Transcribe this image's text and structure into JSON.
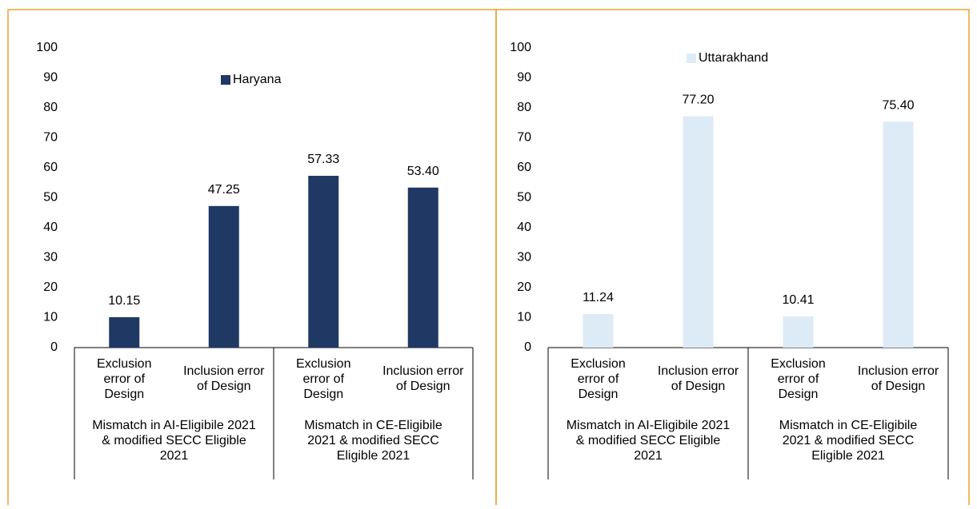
{
  "chart_data": [
    {
      "type": "bar",
      "categories": [
        "Exclusion error of Design",
        "Inclusion error of Design",
        "Exclusion error of Design",
        "Inclusion error of Design"
      ],
      "groups": [
        "Mismatch in AI-Eligibile 2021 & modified SECC Eligible 2021",
        "Mismatch in CE-Eligibile 2021 & modified SECC Eligible 2021"
      ],
      "series": [
        {
          "name": "Haryana",
          "color": "#203864",
          "values": [
            10.15,
            47.25,
            57.33,
            53.4
          ],
          "value_labels": [
            "10.15",
            "47.25",
            "57.33",
            "53.40"
          ]
        }
      ],
      "ylim": [
        0,
        100
      ],
      "yticks": [
        0,
        10,
        20,
        30,
        40,
        50,
        60,
        70,
        80,
        90,
        100
      ],
      "legend": "top"
    },
    {
      "type": "bar",
      "categories": [
        "Exclusion error of Design",
        "Inclusion error of Design",
        "Exclusion error of Design",
        "Inclusion error of Design"
      ],
      "groups": [
        "Mismatch in AI-Eligibile 2021 & modified SECC Eligible 2021",
        "Mismatch in CE-Eligibile 2021 & modified SECC Eligible 2021"
      ],
      "series": [
        {
          "name": "Uttarakhand",
          "color": "#ddebf7",
          "values": [
            11.24,
            77.2,
            10.41,
            75.4
          ],
          "value_labels": [
            "11.24",
            "77.20",
            "10.41",
            "75.40"
          ]
        }
      ],
      "ylim": [
        0,
        100
      ],
      "yticks": [
        0,
        10,
        20,
        30,
        40,
        50,
        60,
        70,
        80,
        90,
        100
      ],
      "legend": "top"
    }
  ]
}
